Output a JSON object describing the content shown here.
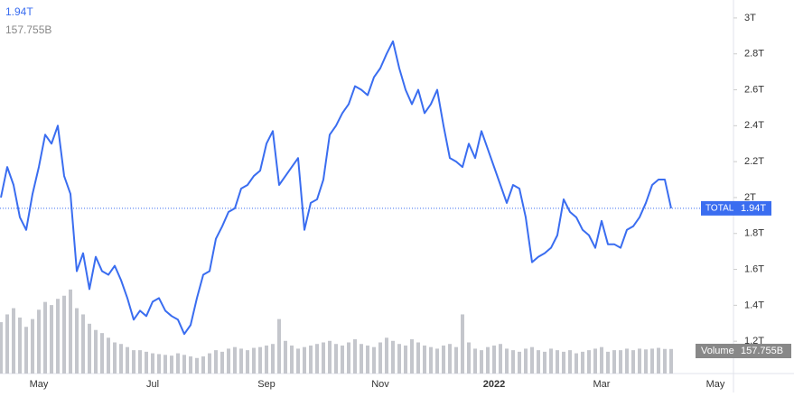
{
  "chart_data": {
    "type": "line",
    "categories": [
      null,
      null,
      null,
      null,
      null,
      null,
      "May",
      null,
      null,
      null,
      null,
      null,
      null,
      null,
      null,
      null,
      null,
      null,
      null,
      null,
      null,
      null,
      null,
      null,
      "Jul",
      null,
      null,
      null,
      null,
      null,
      null,
      null,
      null,
      null,
      null,
      null,
      null,
      null,
      null,
      null,
      null,
      null,
      "Sep",
      null,
      null,
      null,
      null,
      null,
      null,
      null,
      null,
      null,
      null,
      null,
      null,
      null,
      null,
      null,
      null,
      null,
      "Nov",
      null,
      null,
      null,
      null,
      null,
      null,
      null,
      null,
      null,
      null,
      null,
      null,
      null,
      null,
      null,
      null,
      null,
      "2022",
      null,
      null,
      null,
      null,
      null,
      null,
      null,
      null,
      null,
      null,
      null,
      null,
      null,
      null,
      null,
      null,
      "Mar",
      null,
      null,
      null,
      null,
      null,
      null,
      null,
      null,
      null,
      null,
      null,
      null,
      null,
      null,
      null,
      null,
      null,
      "May"
    ],
    "series": [
      {
        "name": "TOTAL",
        "color": "#3a6df0",
        "values": [
          2.0,
          2.17,
          2.07,
          1.89,
          1.82,
          2.02,
          2.17,
          2.35,
          2.3,
          2.4,
          2.12,
          2.02,
          1.59,
          1.69,
          1.49,
          1.67,
          1.59,
          1.57,
          1.62,
          1.54,
          1.44,
          1.32,
          1.37,
          1.34,
          1.42,
          1.44,
          1.37,
          1.34,
          1.32,
          1.24,
          1.29,
          1.44,
          1.57,
          1.59,
          1.77,
          1.84,
          1.92,
          1.94,
          2.05,
          2.07,
          2.12,
          2.15,
          2.3,
          2.37,
          2.07,
          2.12,
          2.17,
          2.22,
          1.82,
          1.97,
          1.99,
          2.1,
          2.35,
          2.4,
          2.47,
          2.52,
          2.62,
          2.6,
          2.57,
          2.67,
          2.72,
          2.8,
          2.87,
          2.72,
          2.6,
          2.52,
          2.6,
          2.47,
          2.52,
          2.6,
          2.4,
          2.22,
          2.2,
          2.17,
          2.3,
          2.22,
          2.37,
          2.27,
          2.17,
          2.07,
          1.97,
          2.07,
          2.05,
          1.89,
          1.64,
          1.67,
          1.69,
          1.72,
          1.79,
          1.99,
          1.92,
          1.89,
          1.82,
          1.79,
          1.72,
          1.87,
          1.74,
          1.74,
          1.72,
          1.82,
          1.84,
          1.89,
          1.97,
          2.07,
          2.1,
          2.1,
          1.94,
          null,
          null,
          null,
          null,
          null,
          null,
          null
        ],
        "value_labels": [
          null,
          null,
          null,
          null,
          null,
          null,
          null,
          null,
          null,
          null,
          null,
          null,
          null,
          null,
          null,
          null,
          null,
          null,
          null,
          null,
          null,
          null,
          null,
          null,
          null,
          null,
          null,
          null,
          null,
          null,
          null,
          null,
          null,
          null,
          null,
          null,
          null,
          null,
          null,
          null,
          null,
          null,
          null,
          null,
          null,
          null,
          null,
          null,
          null,
          null,
          null,
          null,
          null,
          null,
          null,
          null,
          null,
          null,
          null,
          null,
          null,
          null,
          null,
          null,
          null,
          null,
          null,
          null,
          null,
          null,
          null,
          null,
          null,
          null,
          null,
          null,
          null,
          null,
          null,
          null,
          null,
          null,
          null,
          null,
          null,
          null,
          null,
          null,
          null,
          null,
          null,
          null,
          null,
          null,
          null,
          null,
          null,
          null,
          null,
          null,
          null,
          null,
          null,
          null,
          null,
          null,
          "1.94T",
          null,
          null,
          null,
          null,
          null,
          null,
          null
        ]
      },
      {
        "name": "Volume",
        "color": "#c4c6cc",
        "axis": "y2",
        "values": [
          330,
          380,
          420,
          360,
          300,
          350,
          410,
          460,
          440,
          480,
          500,
          540,
          420,
          380,
          320,
          280,
          260,
          230,
          200,
          190,
          170,
          150,
          150,
          140,
          130,
          125,
          120,
          115,
          130,
          120,
          110,
          100,
          110,
          130,
          150,
          140,
          160,
          170,
          160,
          150,
          165,
          170,
          180,
          190,
          350,
          210,
          180,
          160,
          170,
          180,
          190,
          200,
          210,
          190,
          180,
          200,
          220,
          190,
          180,
          170,
          200,
          230,
          210,
          190,
          180,
          220,
          200,
          180,
          170,
          160,
          180,
          190,
          170,
          380,
          200,
          160,
          150,
          170,
          180,
          190,
          160,
          150,
          140,
          160,
          170,
          150,
          140,
          160,
          150,
          140,
          150,
          130,
          140,
          150,
          160,
          170,
          140,
          150,
          150,
          160,
          150,
          160,
          155,
          160,
          165,
          158,
          157.755,
          null,
          null,
          null,
          null,
          null,
          null,
          null
        ],
        "value_labels": [
          null,
          null,
          null,
          null,
          null,
          null,
          null,
          null,
          null,
          null,
          null,
          null,
          null,
          null,
          null,
          null,
          null,
          null,
          null,
          null,
          null,
          null,
          null,
          null,
          null,
          null,
          null,
          null,
          null,
          null,
          null,
          null,
          null,
          null,
          null,
          null,
          null,
          null,
          null,
          null,
          null,
          null,
          null,
          null,
          null,
          null,
          null,
          null,
          null,
          null,
          null,
          null,
          null,
          null,
          null,
          null,
          null,
          null,
          null,
          null,
          null,
          null,
          null,
          null,
          null,
          null,
          null,
          null,
          null,
          null,
          null,
          null,
          null,
          null,
          null,
          null,
          null,
          null,
          null,
          null,
          null,
          null,
          null,
          null,
          null,
          null,
          null,
          null,
          null,
          null,
          null,
          null,
          null,
          null,
          null,
          null,
          null,
          null,
          null,
          null,
          null,
          null,
          null,
          null,
          null,
          null,
          "157.755B",
          null,
          null,
          null,
          null,
          null,
          null,
          null
        ]
      }
    ],
    "ylim": [
      1.02,
      3.1
    ],
    "yticks": [
      {
        "value": 1.2,
        "label": "1.2T"
      },
      {
        "value": 1.4,
        "label": "1.4T"
      },
      {
        "value": 1.6,
        "label": "1.6T"
      },
      {
        "value": 1.8,
        "label": "1.8T"
      },
      {
        "value": 2,
        "label": "2T"
      },
      {
        "value": 2.2,
        "label": "2.2T"
      },
      {
        "value": 2.4,
        "label": "2.4T"
      },
      {
        "value": 2.6,
        "label": "2.6T"
      },
      {
        "value": 2.8,
        "label": "2.8T"
      },
      {
        "value": 3,
        "label": "3T"
      }
    ],
    "y2lim": [
      0,
      2400
    ],
    "grid": false
  }
}
